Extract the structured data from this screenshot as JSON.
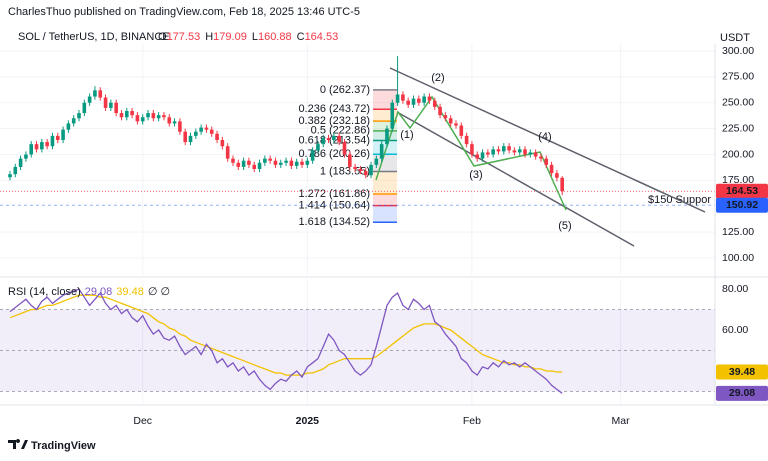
{
  "header": {
    "publisher": "CharlesThuo published on TradingView.com, Feb 18, 2025 13:46 UTC-5",
    "symbol": "SOL / TetherUS, 1D, BINANCE",
    "ohlc_labels": [
      "O",
      "H",
      "L",
      "C"
    ],
    "currency": "USDT"
  },
  "chart_data": [
    {
      "type": "candlestick",
      "up_color": "#089981",
      "down_color": "#f23645",
      "open": [
        178,
        181,
        188,
        196,
        200,
        210,
        205,
        212,
        208,
        218,
        214,
        224,
        230,
        235,
        240,
        250,
        256,
        262,
        255,
        245,
        250,
        240,
        236,
        242,
        238,
        232,
        236,
        240,
        235,
        238,
        236,
        230,
        232,
        222,
        212,
        218,
        222,
        226,
        224,
        220,
        214,
        208,
        196,
        192,
        188,
        194,
        190,
        186,
        192,
        196,
        194,
        190,
        192,
        194,
        189,
        193,
        190,
        194,
        204,
        210,
        216,
        214,
        218,
        212,
        200,
        188,
        186,
        184,
        180,
        190,
        196,
        210,
        225,
        250,
        258,
        252,
        248,
        254,
        250,
        256,
        252,
        246,
        238,
        235,
        230,
        228,
        218,
        210,
        200,
        196,
        202,
        200,
        205,
        203,
        208,
        204,
        202,
        205,
        200,
        202,
        198,
        196,
        190,
        182,
        177.53
      ],
      "high": [
        184,
        191,
        199,
        203,
        213,
        213,
        215,
        215,
        221,
        221,
        227,
        233,
        238,
        243,
        253,
        259,
        266,
        265,
        258,
        253,
        253,
        243,
        245,
        245,
        241,
        239,
        243,
        243,
        241,
        241,
        239,
        235,
        235,
        225,
        221,
        225,
        229,
        229,
        227,
        223,
        217,
        211,
        199,
        195,
        197,
        197,
        193,
        195,
        199,
        199,
        197,
        195,
        197,
        197,
        196,
        196,
        197,
        207,
        213,
        219,
        219,
        221,
        221,
        215,
        203,
        191,
        189,
        187,
        193,
        199,
        213,
        228,
        253,
        295,
        261,
        255,
        257,
        257,
        259,
        259,
        255,
        249,
        241,
        238,
        233,
        231,
        221,
        213,
        203,
        205,
        205,
        208,
        208,
        211,
        211,
        207,
        208,
        208,
        205,
        205,
        201,
        199,
        193,
        185,
        179.09
      ],
      "low": [
        175,
        178,
        185,
        193,
        197,
        202,
        202,
        205,
        205,
        211,
        211,
        221,
        227,
        232,
        237,
        247,
        253,
        252,
        242,
        242,
        237,
        233,
        233,
        235,
        229,
        229,
        233,
        232,
        232,
        233,
        227,
        227,
        219,
        209,
        209,
        215,
        219,
        221,
        217,
        211,
        205,
        193,
        189,
        185,
        185,
        187,
        183,
        183,
        189,
        191,
        187,
        187,
        189,
        186,
        186,
        187,
        187,
        191,
        201,
        207,
        211,
        211,
        209,
        197,
        185,
        183,
        181,
        177,
        177,
        187,
        193,
        207,
        222,
        247,
        249,
        245,
        245,
        247,
        247,
        249,
        243,
        235,
        232,
        227,
        225,
        215,
        207,
        197,
        193,
        193,
        197,
        197,
        200,
        200,
        201,
        199,
        199,
        197,
        197,
        195,
        193,
        187,
        179,
        174,
        160.88
      ],
      "close": [
        181,
        188,
        196,
        200,
        210,
        205,
        212,
        208,
        218,
        214,
        224,
        230,
        235,
        240,
        250,
        256,
        262,
        255,
        245,
        250,
        240,
        236,
        242,
        238,
        232,
        236,
        240,
        235,
        238,
        236,
        230,
        232,
        222,
        212,
        218,
        222,
        226,
        224,
        220,
        214,
        208,
        196,
        192,
        188,
        194,
        190,
        186,
        192,
        196,
        194,
        190,
        192,
        194,
        189,
        193,
        190,
        194,
        204,
        210,
        216,
        214,
        218,
        212,
        200,
        188,
        186,
        184,
        180,
        190,
        196,
        210,
        225,
        250,
        258,
        252,
        248,
        254,
        250,
        256,
        252,
        246,
        238,
        235,
        230,
        228,
        218,
        210,
        200,
        196,
        202,
        200,
        205,
        203,
        208,
        204,
        202,
        205,
        200,
        202,
        198,
        196,
        190,
        182,
        177.53,
        164.53
      ],
      "xlim": [
        -1.88,
        132.78
      ],
      "xticks": [
        {
          "value": 25,
          "label": "Dec"
        },
        {
          "value": 56,
          "label": "2025"
        },
        {
          "value": 87,
          "label": "Feb"
        },
        {
          "value": 115,
          "label": "Mar"
        }
      ],
      "ylim": [
        83.6,
        310.6
      ],
      "yticks": [
        {
          "value": 300,
          "label": "300.00"
        },
        {
          "value": 275,
          "label": "275.00"
        },
        {
          "value": 250,
          "label": "250.00"
        },
        {
          "value": 225,
          "label": "225.00"
        },
        {
          "value": 200,
          "label": "200.00"
        },
        {
          "value": 175,
          "label": "175.00"
        },
        {
          "value": 125,
          "label": "125.00"
        },
        {
          "value": 100,
          "label": "100.00"
        }
      ],
      "fib": [
        {
          "label": "0 (262.37)",
          "value": 262.37,
          "color": "#787b86"
        },
        {
          "label": "0.236 (243.72)",
          "value": 243.72,
          "color": "#f23645"
        },
        {
          "label": "0.382 (232.18)",
          "value": 232.18,
          "color": "#ff9800"
        },
        {
          "label": "0.5 (222.86)",
          "value": 222.86,
          "color": "#4caf50"
        },
        {
          "label": "0.618 (213.54)",
          "value": 213.54,
          "color": "#089981"
        },
        {
          "label": "0.786 (200.26)",
          "value": 200.26,
          "color": "#00bcd4"
        },
        {
          "label": "1 (183.55)",
          "value": 183.55,
          "color": "#787b86"
        },
        {
          "label": "1.272 (161.86)",
          "value": 161.86,
          "color": "#ff9800"
        },
        {
          "label": "1.414 (150.64)",
          "value": 150.64,
          "color": "#f23645"
        },
        {
          "label": "1.618 (134.52)",
          "value": 134.52,
          "color": "#2962ff"
        }
      ],
      "support": {
        "label": "$150 Suppor",
        "value": 150.92,
        "color": "#2962ff"
      },
      "waves": [
        "(1)",
        "(2)",
        "(3)",
        "(4)",
        "(5)"
      ],
      "wave_color": "#4caf50"
    },
    {
      "type": "line",
      "title": "RSI (14, close)",
      "status": "∅ ∅",
      "series": [
        {
          "color": "#7e57c2",
          "values": [
            69,
            71,
            73,
            75,
            72,
            70,
            74,
            76,
            73,
            75,
            77,
            78,
            79,
            80,
            76,
            72,
            75,
            78,
            73,
            70,
            72,
            68,
            70,
            66,
            64,
            67,
            62,
            58,
            60,
            56,
            55,
            57,
            52,
            48,
            50,
            52,
            48,
            53,
            50,
            44,
            46,
            42,
            44,
            40,
            42,
            38,
            40,
            36,
            33,
            31,
            34,
            36,
            35,
            38,
            40,
            37,
            42,
            44,
            46,
            52,
            58,
            55,
            50,
            48,
            44,
            40,
            38,
            40,
            43,
            52,
            62,
            72,
            76,
            78,
            72,
            70,
            75,
            73,
            70,
            72,
            64,
            62,
            58,
            55,
            52,
            46,
            44,
            40,
            38,
            42,
            41,
            44,
            42,
            45,
            43,
            44,
            42,
            44,
            42,
            40,
            38,
            36,
            33,
            31,
            29.08
          ]
        },
        {
          "color": "#f2c200",
          "values": [
            66,
            67,
            68,
            69,
            70,
            70,
            71,
            72,
            72,
            73,
            74,
            75,
            76,
            77,
            77,
            77,
            77,
            76,
            76,
            75,
            74,
            73,
            72,
            71,
            70,
            69,
            68,
            66,
            64,
            63,
            61,
            60,
            58,
            57,
            55,
            54,
            53,
            52,
            51,
            50,
            49,
            48,
            47,
            46,
            45,
            44,
            43,
            42,
            41,
            40,
            39,
            39,
            38,
            38,
            38,
            38,
            39,
            39,
            40,
            41,
            43,
            44,
            45,
            46,
            46,
            46,
            46,
            46,
            46,
            47,
            49,
            51,
            53,
            55,
            57,
            59,
            61,
            62,
            63,
            63,
            63,
            62,
            61,
            60,
            58,
            56,
            54,
            52,
            50,
            48,
            47,
            46,
            45,
            44,
            44,
            43,
            43,
            42,
            42,
            41,
            41,
            40,
            40,
            39.5,
            39.48
          ]
        }
      ],
      "ylim": [
        23.4,
        84.4
      ],
      "yticks": [
        {
          "value": 80,
          "label": "80.00"
        },
        {
          "value": 60,
          "label": "60.00"
        }
      ],
      "band": [
        30,
        70
      ],
      "midline": 50,
      "band_color": "#7e57c2"
    }
  ],
  "footer": {
    "brand": "TradingView"
  }
}
